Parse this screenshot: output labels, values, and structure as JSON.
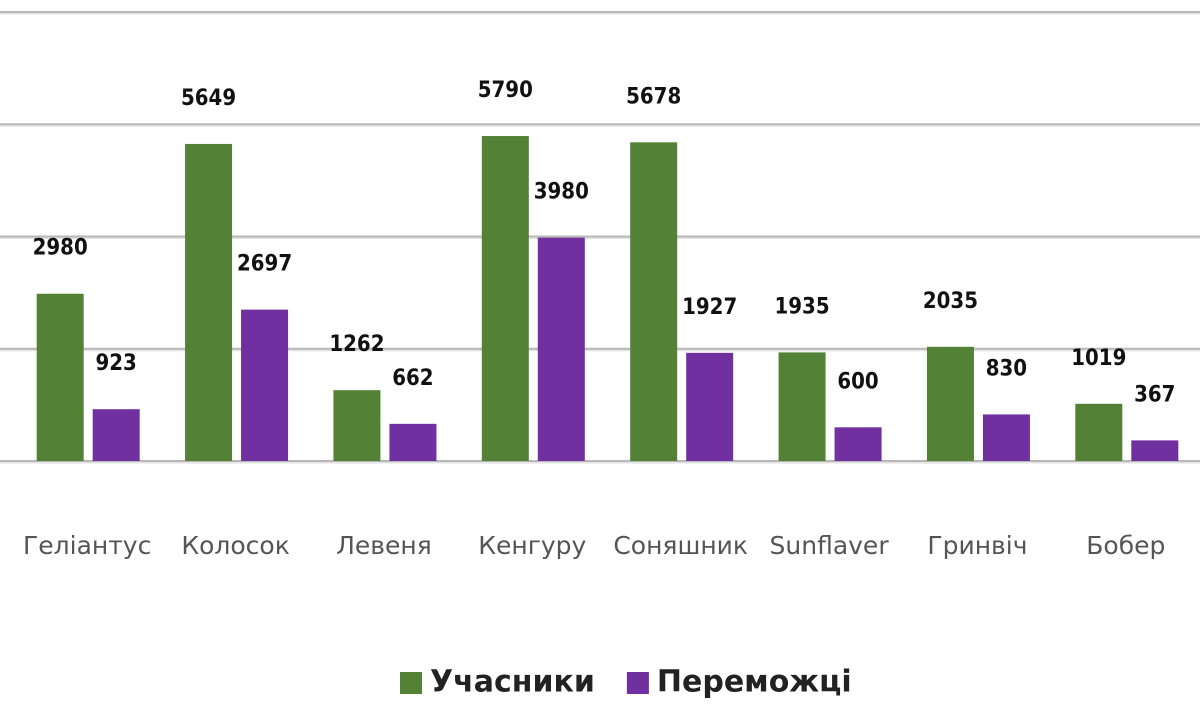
{
  "chart_data": {
    "type": "bar",
    "categories": [
      "Геліантус",
      "Колосок",
      "Левеня",
      "Кенгуру",
      "Соняшник",
      "Sunflaver",
      "Гринвіч",
      "Бобер"
    ],
    "series": [
      {
        "name": "Учасники",
        "color": "#538135",
        "values": [
          2980,
          5649,
          1262,
          5790,
          5678,
          1935,
          2035,
          1019
        ]
      },
      {
        "name": "Переможці",
        "color": "#7030a0",
        "values": [
          923,
          2697,
          662,
          3980,
          1927,
          600,
          830,
          367
        ]
      }
    ],
    "ylim": [
      0,
      8000
    ],
    "yticks": [
      0,
      2000,
      4000,
      6000,
      8000
    ],
    "grid": true,
    "legend": "bottom"
  }
}
